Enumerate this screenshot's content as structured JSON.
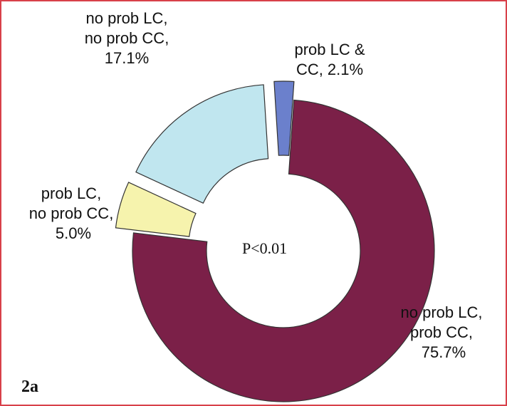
{
  "chart_data": {
    "type": "donut",
    "categories": [
      "no prob LC,\nprob CC,",
      "prob LC,\nno prob CC,",
      "no prob LC,\nno prob CC,",
      "prob LC &\nCC,"
    ],
    "values": [
      75.7,
      5.0,
      17.1,
      2.1
    ],
    "value_labels": [
      "75.7%",
      "5.0%",
      "17.1%",
      "2.1%"
    ],
    "colors": [
      "#7b2048",
      "#f6f3ad",
      "#c0e6ef",
      "#6b80cc"
    ],
    "annotations": [
      "P<0.01",
      "2a"
    ]
  }
}
